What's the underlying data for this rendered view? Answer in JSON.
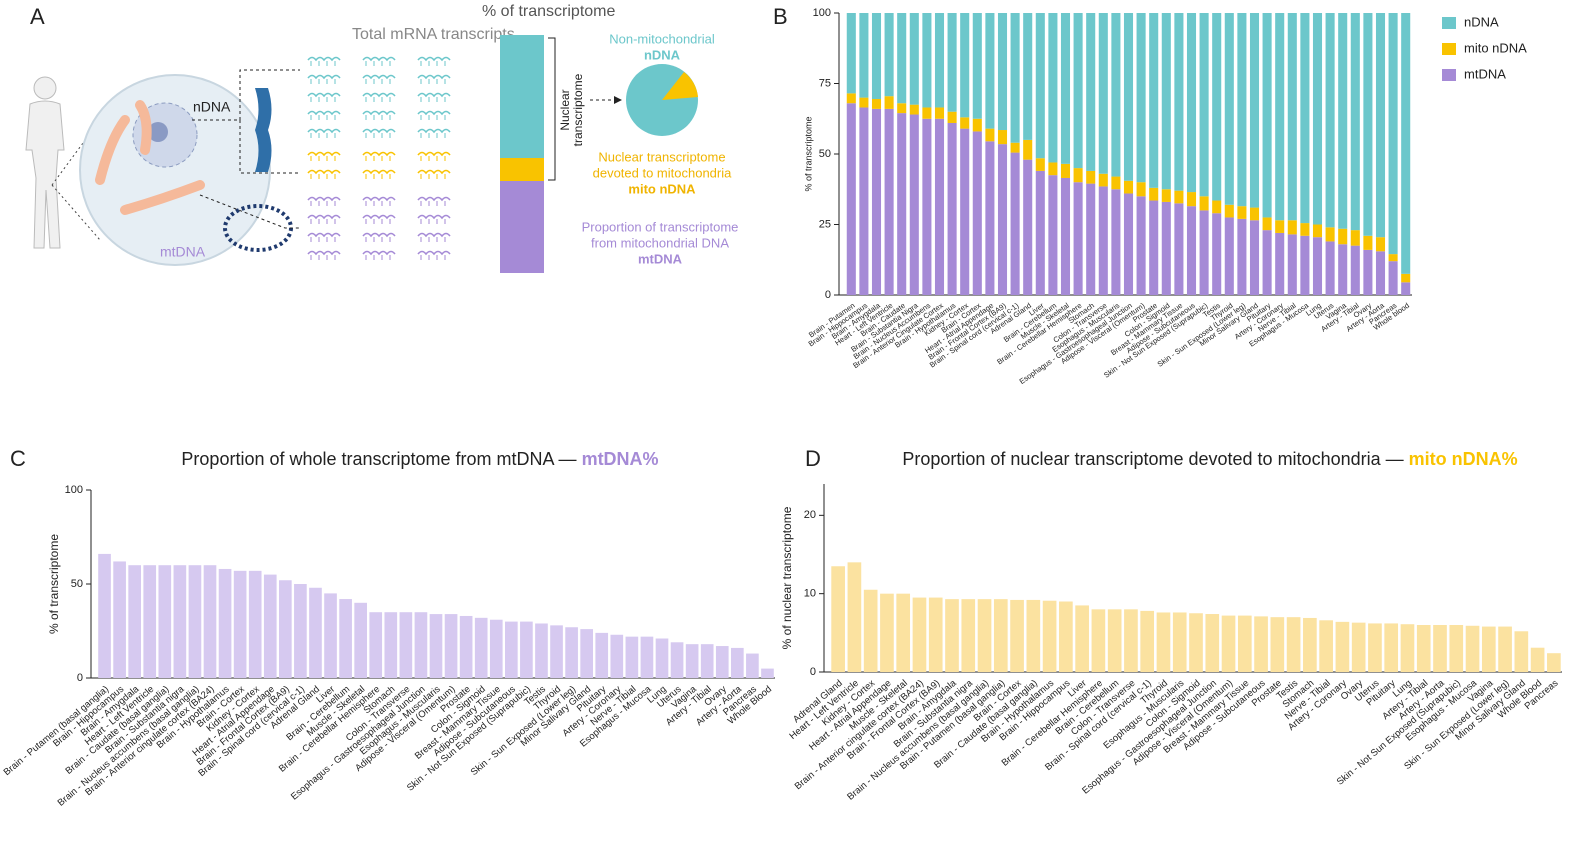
{
  "diagram": {
    "panel_label": "A",
    "header": "Total mRNA transcripts",
    "ndna_label": "nDNA",
    "mtdna_label": "mtDNA",
    "bar_title": "% of transcriptome",
    "non_mito_line": "Non-mitochondrial",
    "non_mito_name": "nDNA",
    "nuclear_bracket": [
      "Nuclear",
      "transcriptome"
    ],
    "mito_lines": [
      "Nuclear transcriptome",
      "devoted to mitochondria"
    ],
    "mito_name": "mito nDNA",
    "mt_lines": [
      "Proportion of transcriptome",
      "from mitochondrial DNA"
    ],
    "mt_name": "mtDNA"
  },
  "chart_data": [
    {
      "type": "stacked_bar",
      "panel_label": "B",
      "y_label": "% of transcriptome",
      "categories": [
        "Brain - Putamen",
        "Brain - Hippocampus",
        "Brain - Amygdala",
        "Heart - Left Ventricle",
        "Brain - Caudate",
        "Brain - Substantia Nigra",
        "Brain - Nucleus Accumbens",
        "Brain - Anterior Cingulate Cortex",
        "Brain - Hypothalamus",
        "Kidney - Cortex",
        "Brain - Cortex",
        "Heart - Atrial Appendage",
        "Brain - Frontal Cortex (BA9)",
        "Brain - Spinal cord (cervical c-1)",
        "Adrenal Gland",
        "Liver",
        "Brain - Cerebellum",
        "Muscle - Skeletal",
        "Brain - Cerebellar Hemisphere",
        "Stomach",
        "Colon - Transverse",
        "Esophagus - Muscularis",
        "Esophagus - Gastroesophageal Junction",
        "Adipose - Visceral (Omentum)",
        "Prostate",
        "Colon - Sigmoid",
        "Breast - Mammary Tissue",
        "Adipose - Subcutaneous",
        "Skin - Not Sun Exposed (Suprapubic)",
        "Testis",
        "Thyroid",
        "Skin - Sun Exposed (Lower leg)",
        "Minor Salivary Gland",
        "Pituitary",
        "Artery - Coronary",
        "Nerve - Tibial",
        "Esophagus - Mucosa",
        "Lung",
        "Uterus",
        "Vagina",
        "Artery - Tibial",
        "Ovary",
        "Artery - Aorta",
        "Pancreas",
        "Whole blood"
      ],
      "series": [
        {
          "name": "mtDNA",
          "color": "#a58ad6",
          "values": [
            68,
            66.5,
            66,
            66,
            64.5,
            64,
            62.5,
            62.5,
            61,
            59,
            58,
            54.5,
            53.5,
            50.5,
            48,
            44,
            42.5,
            41.5,
            40,
            39.5,
            38.5,
            37.5,
            36,
            35,
            33.5,
            33,
            32.5,
            31.5,
            30,
            29,
            27.5,
            27,
            26.5,
            23,
            22,
            21.5,
            21,
            20.5,
            19,
            18,
            17.5,
            16,
            15.5,
            12,
            4.5
          ]
        },
        {
          "name": "mito nDNA",
          "color": "#f9c300",
          "values": [
            3.5,
            3.5,
            3.5,
            4.5,
            3.5,
            3.5,
            4,
            4,
            4,
            4,
            4.5,
            4.5,
            5,
            3.5,
            7,
            4.5,
            4.5,
            5,
            5,
            4.5,
            4.5,
            4.5,
            4.5,
            5,
            4.5,
            4.5,
            4.5,
            5,
            5,
            4.5,
            4.5,
            4.5,
            4.5,
            4.5,
            4.5,
            5,
            4.5,
            4.5,
            5,
            5.5,
            5.5,
            5,
            5,
            2.5,
            3
          ]
        },
        {
          "name": "nDNA",
          "color": "#6cc7cb",
          "values": [
            28.5,
            30,
            30.5,
            29.5,
            32,
            32.5,
            33.5,
            33.5,
            35,
            37,
            37.5,
            41,
            41.5,
            46,
            45,
            51.5,
            53,
            53.5,
            55,
            56,
            57,
            58,
            59.5,
            60,
            62,
            62.5,
            63,
            63.5,
            65,
            66.5,
            68,
            68.5,
            69,
            72.5,
            73.5,
            73.5,
            74.5,
            75,
            76,
            76.5,
            77,
            79,
            79.5,
            85.5,
            92.5
          ]
        }
      ],
      "ylim": [
        0,
        100
      ],
      "yticks": [
        0,
        25,
        50,
        75,
        100
      ],
      "legend": "right"
    },
    {
      "type": "bar",
      "panel_label": "C",
      "title": "Proportion of whole transcriptome from mtDNA — ",
      "title_highlight": "mtDNA%",
      "highlight_color": "#a58ad6",
      "y_label": "% of transcriptome",
      "color": "#d6c9f0",
      "categories": [
        "Brain - Putamen (basal ganglia)",
        "Brain - Hippocampus",
        "Brain - Amygdala",
        "Heart - Left Ventricle",
        "Brain - Caudate (basal ganglia)",
        "Brain - Substantia nigra",
        "Brain - Nucleus accumbens (basal ganglia)",
        "Brain - Anterior cingulate cortex (BA24)",
        "Brain - Hypothalamus",
        "Brain - Cortex",
        "Kidney - Cortex",
        "Heart - Atrial Appendage",
        "Brain - Frontal Cortex (BA9)",
        "Brain - Spinal cord (cervical c-1)",
        "Adrenal Gland",
        "Liver",
        "Brain - Cerebellum",
        "Muscle - Skeletal",
        "Brain - Cerebellar Hemisphere",
        "Stomach",
        "Colon - Transverse",
        "Esophagus - Gastroesophageal Junction",
        "Esophagus - Muscularis",
        "Adipose - Visceral (Omentum)",
        "Prostate",
        "Colon - Sigmoid",
        "Breast - Mammary Tissue",
        "Adipose - Subcutaneous",
        "Skin - Not Sun Exposed (Suprapubic)",
        "Testis",
        "Thyroid",
        "Skin - Sun Exposed (Lower leg)",
        "Minor Salivary Gland",
        "Pituitary",
        "Artery - Coronary",
        "Nerve - Tibial",
        "Esophagus - Mucosa",
        "Lung",
        "Uterus",
        "Vagina",
        "Artery - Tibial",
        "Ovary",
        "Artery - Aorta",
        "Pancreas",
        "Whole Blood"
      ],
      "values": [
        66,
        62,
        60,
        60,
        60,
        60,
        60,
        60,
        58,
        57,
        57,
        55,
        52,
        50,
        48,
        45,
        42,
        40,
        35,
        35,
        35,
        35,
        34,
        34,
        33,
        32,
        31,
        30,
        30,
        29,
        28,
        27,
        26,
        24,
        23,
        22,
        22,
        21,
        19,
        18,
        18,
        17,
        16,
        13,
        5
      ],
      "ylim": [
        0,
        100
      ],
      "yticks": [
        0,
        50,
        100
      ]
    },
    {
      "type": "bar",
      "panel_label": "D",
      "title": "Proportion of nuclear transcriptome devoted to mitochondria — ",
      "title_highlight": "mito nDNA%",
      "highlight_color": "#f9c300",
      "y_label": "% of nuclear transcriptome",
      "color": "#fbe2a0",
      "categories": [
        "Adrenal Gland",
        "Heart - Left Ventricle",
        "Kidney - Cortex",
        "Heart - Atrial Appendage",
        "Muscle - Skeletal",
        "Brain - Anterior cingulate cortex (BA24)",
        "Brain - Frontal Cortex (BA9)",
        "Brain - Amygdala",
        "Brain - Substantia nigra",
        "Brain - Nucleus accumbens (basal ganglia)",
        "Brain - Putamen (basal ganglia)",
        "Brain - Cortex",
        "Brain - Caudate (basal ganglia)",
        "Brain - Hypothalamus",
        "Brain - Hippocampus",
        "Liver",
        "Brain - Cerebellar Hemisphere",
        "Brain - Cerebellum",
        "Colon - Transverse",
        "Brain - Spinal cord (cervical c-1)",
        "Thyroid",
        "Esophagus - Muscularis",
        "Colon - Sigmoid",
        "Esophagus - Gastroesophageal Junction",
        "Adipose - Visceral (Omentum)",
        "Breast - Mammary Tissue",
        "Adipose - Subcutaneous",
        "Prostate",
        "Testis",
        "Stomach",
        "Nerve - Tibial",
        "Artery - Coronary",
        "Ovary",
        "Uterus",
        "Pituitary",
        "Lung",
        "Artery - Tibial",
        "Artery - Aorta",
        "Skin - Not Sun Exposed (Suprapubic)",
        "Esophagus - Mucosa",
        "Vagina",
        "Skin - Sun Exposed (Lower leg)",
        "Minor Salivary Gland",
        "Whole Blood",
        "Pancreas"
      ],
      "values": [
        13.5,
        14,
        10.5,
        10,
        10,
        9.5,
        9.5,
        9.3,
        9.3,
        9.3,
        9.3,
        9.2,
        9.2,
        9.1,
        9,
        8.5,
        8,
        8,
        8,
        7.8,
        7.6,
        7.6,
        7.5,
        7.4,
        7.2,
        7.2,
        7.1,
        7,
        7,
        6.9,
        6.6,
        6.4,
        6.3,
        6.2,
        6.2,
        6.1,
        6,
        6,
        6,
        5.9,
        5.8,
        5.8,
        5.2,
        3.1,
        2.4
      ],
      "ylim": [
        0,
        24
      ],
      "yticks": [
        0,
        10,
        20
      ]
    }
  ]
}
